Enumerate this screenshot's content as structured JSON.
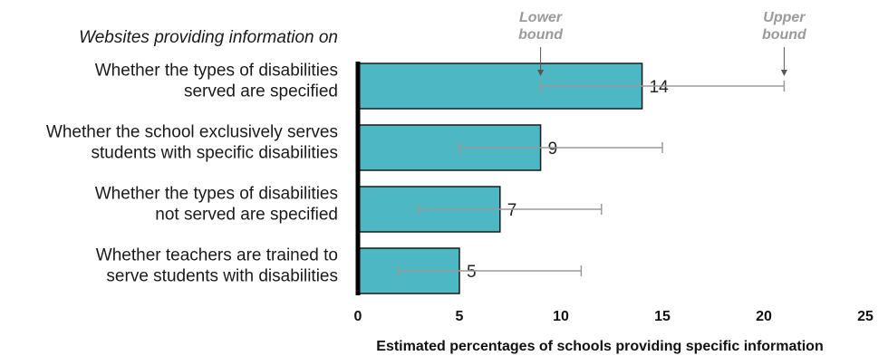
{
  "chart_data": {
    "type": "bar",
    "orientation": "horizontal",
    "heading": "Websites providing information on",
    "categories": [
      [
        "Whether the types of disabilities",
        "served are specified"
      ],
      [
        "Whether the school exclusively serves",
        "students with specific disabilities"
      ],
      [
        "Whether the types of disabilities",
        "not served are specified"
      ],
      [
        "Whether teachers are trained to",
        "serve students with disabilities"
      ]
    ],
    "values": [
      14,
      9,
      7,
      5
    ],
    "lower_bounds": [
      9,
      5,
      3,
      2
    ],
    "upper_bounds": [
      21,
      15,
      12,
      11
    ],
    "data_labels": [
      "14",
      "9",
      "7",
      "5"
    ],
    "xlabel": "Estimated percentages of schools providing specific information",
    "xlim": [
      0,
      25
    ],
    "xticks": [
      0,
      5,
      10,
      15,
      20,
      25
    ],
    "grid": false,
    "annotations": {
      "lower": [
        "Lower",
        "bound"
      ],
      "upper": [
        "Upper",
        "bound"
      ]
    },
    "colors": {
      "bar_fill": "#4db8c3",
      "bar_stroke": "#1a1a1a",
      "error_bar": "#9a9a9a",
      "axis": "#000000",
      "annotation_text": "#9a9a9a",
      "annotation_arrow": "#555555"
    }
  }
}
